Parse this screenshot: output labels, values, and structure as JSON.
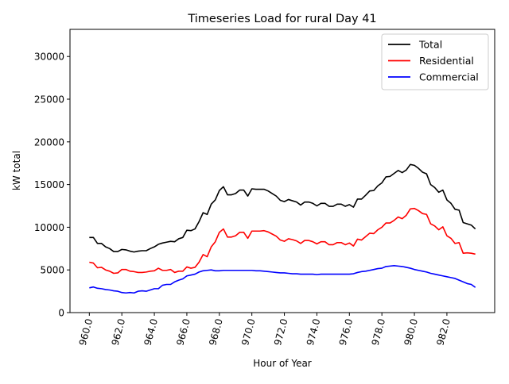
{
  "chart_data": {
    "type": "line",
    "title": "Timeseries Load for rural   Day 41",
    "xlabel": "Hour of Year",
    "ylabel": "kW total",
    "xlim": [
      958.81,
      984.94
    ],
    "ylim": [
      0,
      33180
    ],
    "xticks": [
      960,
      962,
      964,
      966,
      968,
      970,
      972,
      974,
      976,
      978,
      980,
      982
    ],
    "xtick_labels": [
      "960.0",
      "962.0",
      "964.0",
      "966.0",
      "968.0",
      "970.0",
      "972.0",
      "974.0",
      "976.0",
      "978.0",
      "980.0",
      "982.0"
    ],
    "yticks": [
      0,
      5000,
      10000,
      15000,
      20000,
      25000,
      30000
    ],
    "ytick_labels": [
      "0",
      "5000",
      "10000",
      "15000",
      "20000",
      "25000",
      "30000"
    ],
    "grid": false,
    "legend_position": "top-right",
    "x_start": 960,
    "x_step": 0.25,
    "series": [
      {
        "name": "Total",
        "color": "#000000",
        "values": [
          8800,
          8800,
          8100,
          8100,
          7700,
          7500,
          7150,
          7150,
          7400,
          7350,
          7200,
          7100,
          7200,
          7250,
          7250,
          7500,
          7700,
          8000,
          8150,
          8250,
          8350,
          8300,
          8650,
          8800,
          9650,
          9600,
          9800,
          10650,
          11700,
          11500,
          12700,
          13200,
          14300,
          14750,
          13800,
          13800,
          13950,
          14350,
          14350,
          13650,
          14500,
          14450,
          14450,
          14450,
          14250,
          13950,
          13650,
          13150,
          13000,
          13250,
          13100,
          12950,
          12600,
          12950,
          12950,
          12800,
          12500,
          12800,
          12800,
          12450,
          12450,
          12700,
          12700,
          12450,
          12650,
          12350,
          13300,
          13300,
          13750,
          14250,
          14300,
          14850,
          15200,
          15900,
          15950,
          16300,
          16650,
          16400,
          16700,
          17350,
          17250,
          16900,
          16450,
          16250,
          15000,
          14650,
          14100,
          14350,
          13200,
          12800,
          12100,
          12000,
          10550,
          10400,
          10250,
          9800
        ]
      },
      {
        "name": "Residential",
        "color": "#ff0000",
        "values": [
          5900,
          5800,
          5250,
          5300,
          5000,
          4850,
          4600,
          4650,
          5050,
          5050,
          4850,
          4800,
          4700,
          4700,
          4750,
          4850,
          4900,
          5200,
          4950,
          4950,
          5050,
          4700,
          4850,
          4850,
          5350,
          5200,
          5300,
          5900,
          6800,
          6550,
          7700,
          8300,
          9400,
          9800,
          8850,
          8850,
          9000,
          9400,
          9400,
          8700,
          9550,
          9550,
          9550,
          9600,
          9450,
          9200,
          8950,
          8500,
          8350,
          8650,
          8550,
          8400,
          8100,
          8450,
          8450,
          8300,
          8050,
          8300,
          8300,
          7950,
          7950,
          8200,
          8200,
          7950,
          8150,
          7800,
          8600,
          8500,
          8900,
          9300,
          9250,
          9700,
          10000,
          10500,
          10500,
          10800,
          11200,
          11000,
          11400,
          12150,
          12200,
          11950,
          11600,
          11500,
          10400,
          10150,
          9700,
          10050,
          9000,
          8700,
          8100,
          8200,
          6950,
          7000,
          6950,
          6850
        ]
      },
      {
        "name": "Commercial",
        "color": "#0000ff",
        "values": [
          2900,
          3000,
          2850,
          2800,
          2700,
          2650,
          2550,
          2500,
          2350,
          2300,
          2350,
          2300,
          2500,
          2550,
          2500,
          2650,
          2800,
          2800,
          3200,
          3300,
          3300,
          3600,
          3800,
          3950,
          4300,
          4400,
          4500,
          4750,
          4900,
          4950,
          5000,
          4900,
          4900,
          4950,
          4950,
          4950,
          4950,
          4950,
          4950,
          4950,
          4950,
          4900,
          4900,
          4850,
          4800,
          4750,
          4700,
          4650,
          4650,
          4600,
          4550,
          4550,
          4500,
          4500,
          4500,
          4500,
          4450,
          4500,
          4500,
          4500,
          4500,
          4500,
          4500,
          4500,
          4500,
          4550,
          4700,
          4800,
          4850,
          4950,
          5050,
          5150,
          5200,
          5400,
          5450,
          5500,
          5450,
          5400,
          5300,
          5200,
          5050,
          4950,
          4850,
          4750,
          4600,
          4500,
          4400,
          4300,
          4200,
          4100,
          4000,
          3800,
          3600,
          3400,
          3300,
          2950
        ]
      }
    ]
  }
}
